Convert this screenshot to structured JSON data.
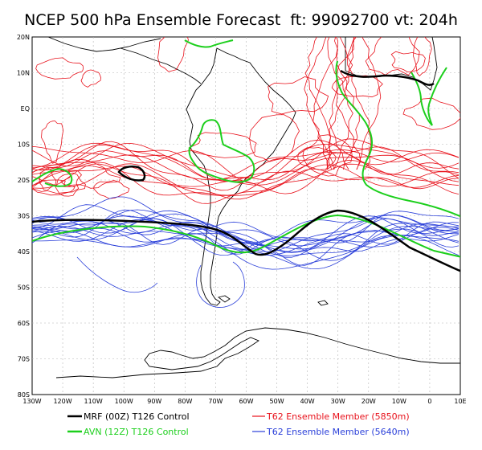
{
  "title": "NCEP 500 hPa Ensemble Forecast  ft: 99092700 vt: 204h",
  "axes": {
    "lat_labels": [
      "20N",
      "10N",
      "EQ",
      "10S",
      "20S",
      "30S",
      "40S",
      "50S",
      "60S",
      "70S",
      "80S"
    ],
    "lon_labels": [
      "130W",
      "120W",
      "110W",
      "100W",
      "90W",
      "80W",
      "70W",
      "60W",
      "50W",
      "40W",
      "30W",
      "20W",
      "10W",
      "0",
      "10E"
    ]
  },
  "legend": [
    {
      "label": "MRF (00Z) T126 Control",
      "color": "#000000"
    },
    {
      "label": "T62 Ensemble Member (5850m)",
      "color": "#e8111b"
    },
    {
      "label": "AVN (12Z) T126 Control",
      "color": "#1ccf1c"
    },
    {
      "label": "T62 Ensemble Member (5640m)",
      "color": "#2a3fd9"
    }
  ],
  "colors": {
    "red_members": "#e8111b",
    "blue_members": "#2a3fd9",
    "green_avn": "#1ccf1c",
    "black_mrf": "#000000",
    "coast": "#000000"
  }
}
